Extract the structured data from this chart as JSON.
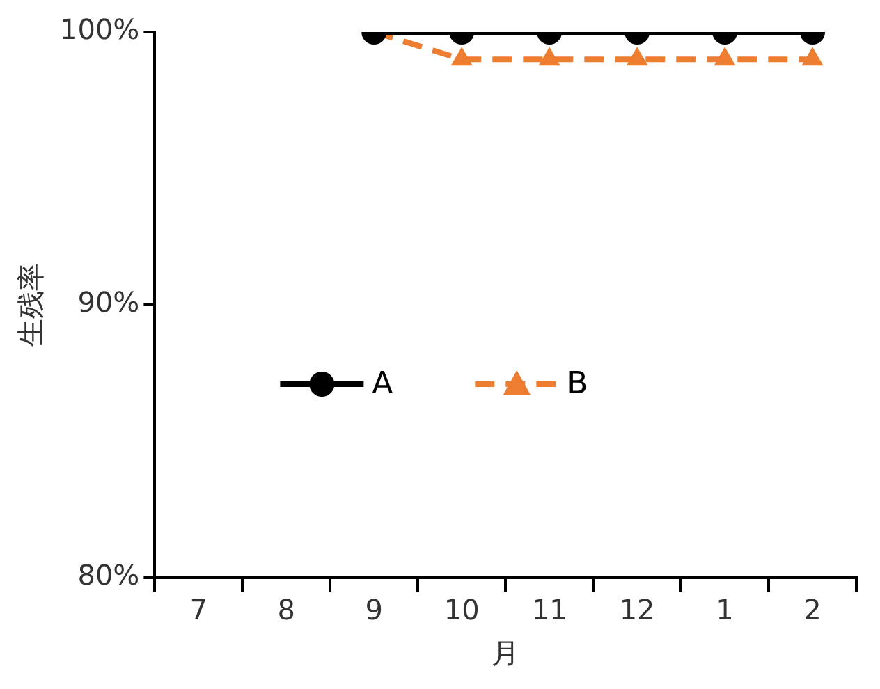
{
  "chart_data": {
    "type": "line",
    "ylabel": "生残率",
    "xlabel": "月",
    "categories": [
      "7",
      "8",
      "9",
      "10",
      "11",
      "12",
      "1",
      "2"
    ],
    "series": [
      {
        "name": "A",
        "color": "#000000",
        "marker": "circle",
        "line_style": "solid",
        "values": [
          null,
          null,
          100,
          100,
          100,
          100,
          100,
          100
        ]
      },
      {
        "name": "B",
        "color": "#ed7d31",
        "marker": "triangle",
        "line_style": "dashed",
        "values": [
          null,
          null,
          100,
          99,
          99,
          99,
          99,
          99
        ]
      }
    ],
    "ylim": [
      80,
      100
    ],
    "yticks": [
      {
        "value": 80,
        "label": "80%"
      },
      {
        "value": 90,
        "label": "90%"
      },
      {
        "value": 100,
        "label": "100%"
      }
    ],
    "grid": false,
    "legend": "left"
  }
}
